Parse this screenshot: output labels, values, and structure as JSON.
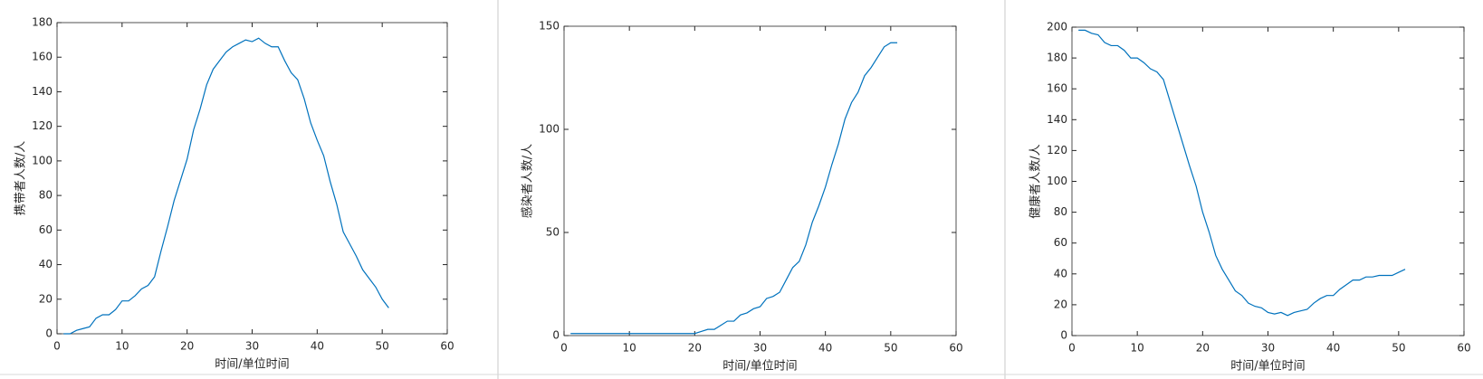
{
  "chart_data": [
    {
      "type": "line",
      "xlabel": "时间/单位时间",
      "ylabel": "携带者人数/人",
      "x": [
        1,
        2,
        3,
        4,
        5,
        6,
        7,
        8,
        9,
        10,
        11,
        12,
        13,
        14,
        15,
        16,
        17,
        18,
        19,
        20,
        21,
        22,
        23,
        24,
        25,
        26,
        27,
        28,
        29,
        30,
        31,
        32,
        33,
        34,
        35,
        36,
        37,
        38,
        39,
        40,
        41,
        42,
        43,
        44,
        45,
        46,
        47,
        48,
        49,
        50,
        51
      ],
      "series": [
        {
          "color": "#0072bd",
          "values": [
            0,
            0,
            2,
            3,
            4,
            9,
            11,
            11,
            14,
            19,
            19,
            22,
            26,
            28,
            33,
            48,
            62,
            77,
            89,
            101,
            118,
            130,
            144,
            153,
            158,
            163,
            166,
            168,
            170,
            169,
            171,
            168,
            166,
            166,
            158,
            151,
            147,
            136,
            122,
            112,
            103,
            88,
            75,
            59,
            52,
            45,
            37,
            32,
            27,
            20,
            15
          ]
        }
      ],
      "xlim": [
        0,
        60
      ],
      "xticks": [
        0,
        10,
        20,
        30,
        40,
        50,
        60
      ],
      "ylim": [
        0,
        180
      ],
      "yticks": [
        0,
        20,
        40,
        60,
        80,
        100,
        120,
        140,
        160,
        180
      ]
    },
    {
      "type": "line",
      "xlabel": "时间/单位时间",
      "ylabel": "感染者人数/人",
      "x": [
        1,
        2,
        3,
        4,
        5,
        6,
        7,
        8,
        9,
        10,
        11,
        12,
        13,
        14,
        15,
        16,
        17,
        18,
        19,
        20,
        21,
        22,
        23,
        24,
        25,
        26,
        27,
        28,
        29,
        30,
        31,
        32,
        33,
        34,
        35,
        36,
        37,
        38,
        39,
        40,
        41,
        42,
        43,
        44,
        45,
        46,
        47,
        48,
        49,
        50,
        51
      ],
      "series": [
        {
          "color": "#0072bd",
          "values": [
            1,
            1,
            1,
            1,
            1,
            1,
            1,
            1,
            1,
            1,
            1,
            1,
            1,
            1,
            1,
            1,
            1,
            1,
            1,
            1,
            2,
            3,
            3,
            5,
            7,
            7,
            10,
            11,
            13,
            14,
            18,
            19,
            21,
            27,
            33,
            36,
            44,
            55,
            63,
            72,
            83,
            93,
            105,
            113,
            118,
            126,
            130,
            135,
            140,
            142,
            142
          ]
        }
      ],
      "xlim": [
        0,
        60
      ],
      "xticks": [
        0,
        10,
        20,
        30,
        40,
        50,
        60
      ],
      "ylim": [
        0,
        150
      ],
      "yticks": [
        0,
        50,
        100,
        150
      ]
    },
    {
      "type": "line",
      "xlabel": "时间/单位时间",
      "ylabel": "健康者人数/人",
      "x": [
        1,
        2,
        3,
        4,
        5,
        6,
        7,
        8,
        9,
        10,
        11,
        12,
        13,
        14,
        15,
        16,
        17,
        18,
        19,
        20,
        21,
        22,
        23,
        24,
        25,
        26,
        27,
        28,
        29,
        30,
        31,
        32,
        33,
        34,
        35,
        36,
        37,
        38,
        39,
        40,
        41,
        42,
        43,
        44,
        45,
        46,
        47,
        48,
        49,
        50,
        51
      ],
      "series": [
        {
          "color": "#0072bd",
          "values": [
            198,
            198,
            196,
            195,
            190,
            188,
            188,
            185,
            180,
            180,
            177,
            173,
            171,
            166,
            152,
            138,
            124,
            110,
            97,
            80,
            67,
            52,
            43,
            36,
            29,
            26,
            21,
            19,
            18,
            15,
            14,
            15,
            13,
            15,
            16,
            17,
            21,
            24,
            26,
            26,
            30,
            33,
            36,
            36,
            38,
            38,
            39,
            39,
            39,
            41,
            43
          ]
        }
      ],
      "xlim": [
        0,
        60
      ],
      "xticks": [
        0,
        10,
        20,
        30,
        40,
        50,
        60
      ],
      "ylim": [
        0,
        200
      ],
      "yticks": [
        0,
        20,
        40,
        60,
        80,
        100,
        120,
        140,
        160,
        180,
        200
      ]
    }
  ]
}
